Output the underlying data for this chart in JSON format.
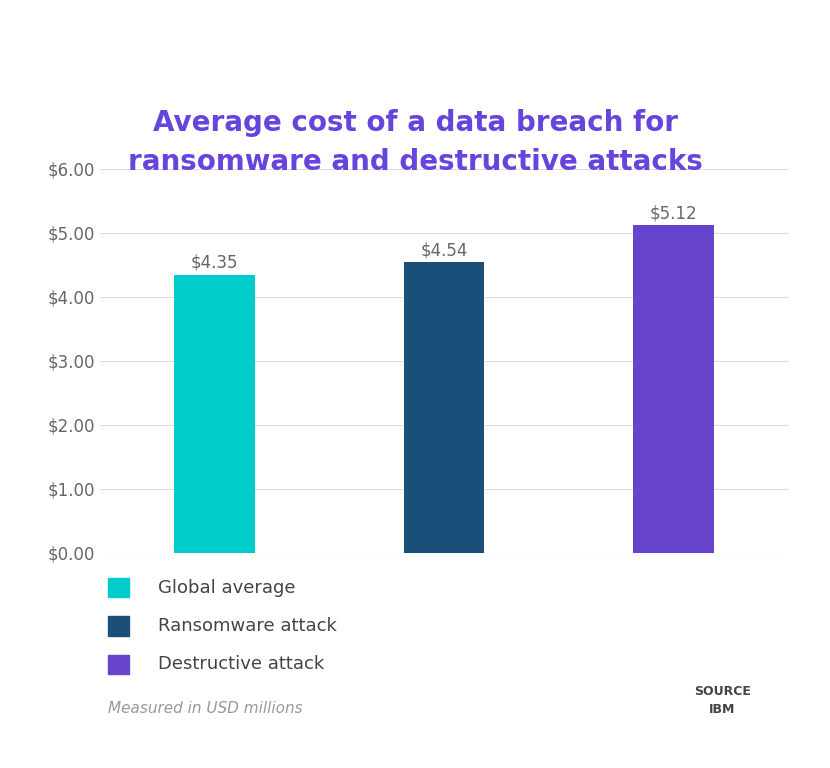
{
  "title": "Average cost of a data breach for\nransomware and destructive attacks",
  "title_color": "#6644DD",
  "title_fontsize": 20,
  "categories": [
    "Global average",
    "Ransomware attack",
    "Destructive attack"
  ],
  "values": [
    4.35,
    4.54,
    5.12
  ],
  "bar_colors": [
    "#00CCCC",
    "#1A4F7A",
    "#6644CC"
  ],
  "bar_labels": [
    "$4.35",
    "$4.54",
    "$5.12"
  ],
  "ylim": [
    0,
    6.0
  ],
  "yticks": [
    0.0,
    1.0,
    2.0,
    3.0,
    4.0,
    5.0,
    6.0
  ],
  "ytick_labels": [
    "$0.00",
    "$1.00",
    "$2.00",
    "$3.00",
    "$4.00",
    "$5.00",
    "$6.00"
  ],
  "legend_labels": [
    "Global average",
    "Ransomware attack",
    "Destructive attack"
  ],
  "legend_colors": [
    "#00CCCC",
    "#1A4F7A",
    "#6644CC"
  ],
  "footnote": "Measured in USD millions",
  "source_label": "SOURCE\nIBM",
  "background_color": "#FFFFFF",
  "grid_color": "#DDDDDD",
  "bar_label_fontsize": 12,
  "tick_label_fontsize": 12,
  "legend_fontsize": 13,
  "bar_width": 0.35
}
